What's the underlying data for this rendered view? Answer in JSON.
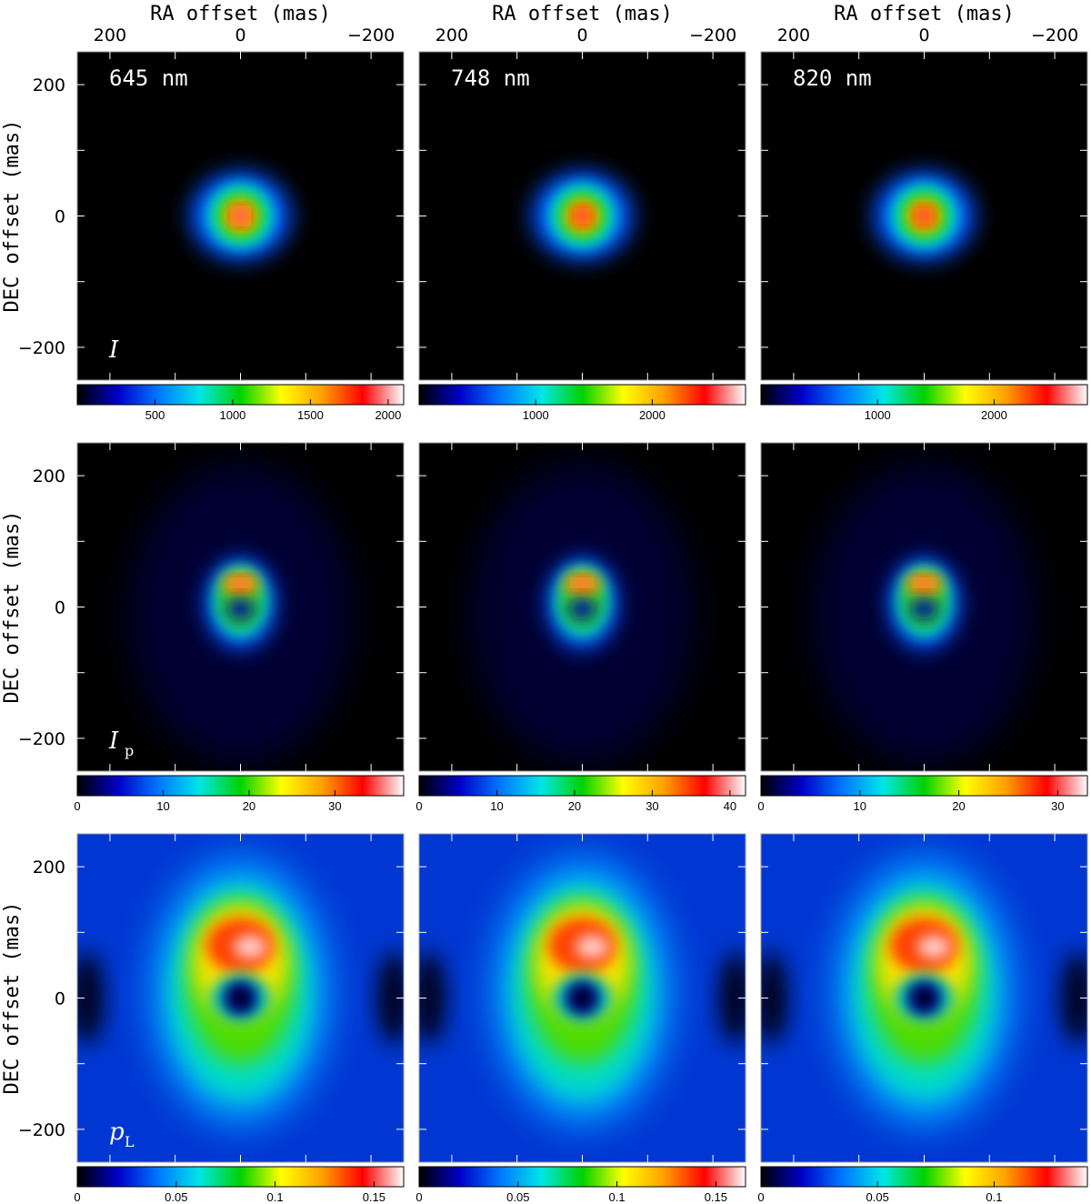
{
  "figure": {
    "columns": [
      "645 nm",
      "748 nm",
      "820 nm"
    ],
    "ra_axis": {
      "title": "RA offset (mas)",
      "ticks": [
        "200",
        "0",
        "−200"
      ]
    },
    "dec_axis": {
      "title": "DEC offset (mas)",
      "ticks": [
        "200",
        "0",
        "−200"
      ]
    }
  },
  "chart_data": [
    {
      "type": "heatmap",
      "quantity": "I",
      "label": "I",
      "label_sub": "",
      "xlabel": "RA offset (mas)",
      "ylabel": "DEC offset (mas)",
      "xlim": [
        250,
        -250
      ],
      "ylim": [
        -250,
        250
      ],
      "panels": [
        {
          "wavelength": "645 nm",
          "colorbar_ticks": [
            "500",
            "1000",
            "1500",
            "2000"
          ],
          "colorbar_range": [
            0,
            2100
          ]
        },
        {
          "wavelength": "748 nm",
          "colorbar_ticks": [
            "1000",
            "2000"
          ],
          "colorbar_range": [
            0,
            2800
          ]
        },
        {
          "wavelength": "820 nm",
          "colorbar_ticks": [
            "1000",
            "2000"
          ],
          "colorbar_range": [
            0,
            2800
          ]
        }
      ],
      "structure": "compact central source, peak at (0,0), extent about ±100 mas"
    },
    {
      "type": "heatmap",
      "quantity": "Ip",
      "label": "I",
      "label_sub": "p",
      "xlabel": "RA offset (mas)",
      "ylabel": "DEC offset (mas)",
      "xlim": [
        250,
        -250
      ],
      "ylim": [
        -250,
        250
      ],
      "panels": [
        {
          "wavelength": "645 nm",
          "colorbar_ticks": [
            "0",
            "10",
            "20",
            "30"
          ],
          "colorbar_range": [
            0,
            38
          ]
        },
        {
          "wavelength": "748 nm",
          "colorbar_ticks": [
            "0",
            "10",
            "20",
            "30",
            "40"
          ],
          "colorbar_range": [
            0,
            42
          ]
        },
        {
          "wavelength": "820 nm",
          "colorbar_ticks": [
            "0",
            "10",
            "20",
            "30"
          ],
          "colorbar_range": [
            0,
            33
          ]
        }
      ],
      "structure": "ring around the star, bright arc at about +35 mas DEC, dark hole at centre"
    },
    {
      "type": "heatmap",
      "quantity": "pL",
      "label": "p",
      "label_sub": "L",
      "xlabel": "RA offset (mas)",
      "ylabel": "DEC offset (mas)",
      "xlim": [
        250,
        -250
      ],
      "ylim": [
        -250,
        250
      ],
      "panels": [
        {
          "wavelength": "645 nm",
          "colorbar_ticks": [
            "0",
            "0.05",
            "0.1",
            "0.15"
          ],
          "colorbar_range": [
            0,
            0.165
          ]
        },
        {
          "wavelength": "748 nm",
          "colorbar_ticks": [
            "0",
            "0.05",
            "0.1",
            "0.15"
          ],
          "colorbar_range": [
            0,
            0.165
          ]
        },
        {
          "wavelength": "820 nm",
          "colorbar_ticks": [
            "0",
            "0.05",
            "0.1"
          ],
          "colorbar_range": [
            0,
            0.14
          ]
        }
      ],
      "structure": "extended polarization degree map, maximum near +80 mas DEC, minimum at centre"
    }
  ],
  "colormap": [
    "#000000",
    "#0000c8",
    "#0078ff",
    "#00e6e6",
    "#00d200",
    "#ffff00",
    "#ffa000",
    "#ff0000",
    "#ffffff"
  ]
}
